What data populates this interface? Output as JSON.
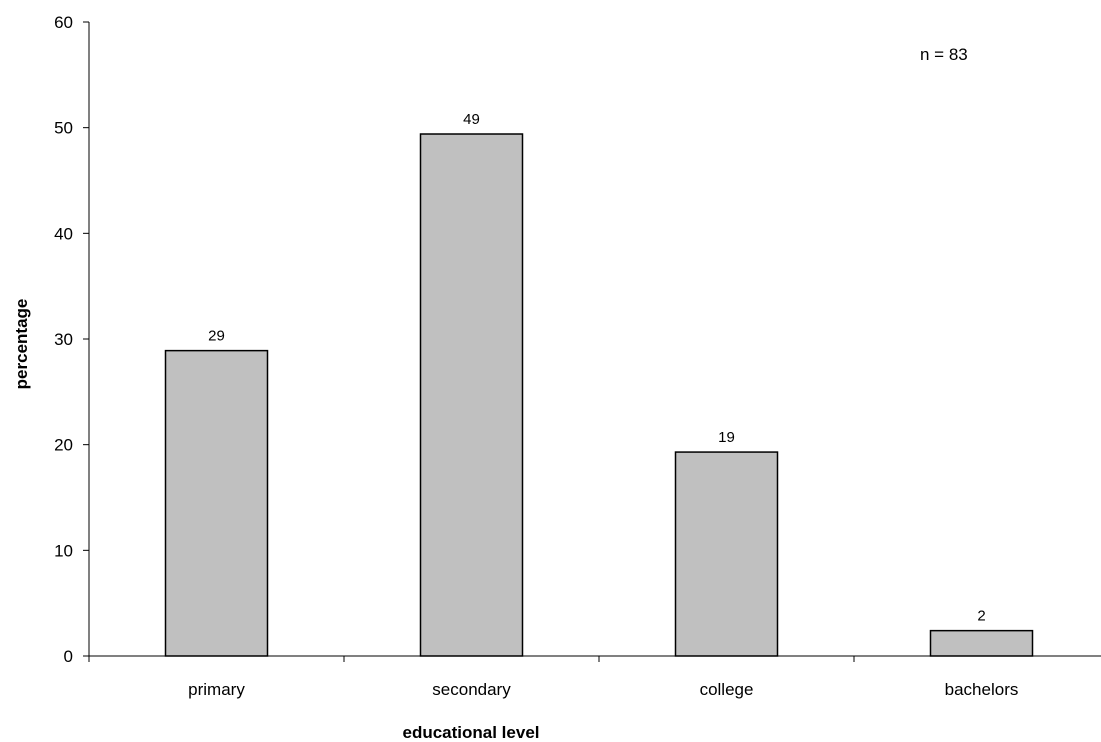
{
  "chart_data": {
    "type": "bar",
    "categories": [
      "primary",
      "secondary",
      "college",
      "bachelors"
    ],
    "values": [
      28.9,
      49.4,
      19.3,
      2.4
    ],
    "data_labels": [
      "29",
      "49",
      "19",
      "2"
    ],
    "xlabel": "educational level",
    "ylabel": "percentage",
    "ylim": [
      0,
      60
    ],
    "yticks": [
      0,
      10,
      20,
      30,
      40,
      50,
      60
    ],
    "annotation": "n = 83",
    "grid": false,
    "legend": "none",
    "bar_color": "#c0c0c0",
    "bar_edge_color": "#000000"
  }
}
